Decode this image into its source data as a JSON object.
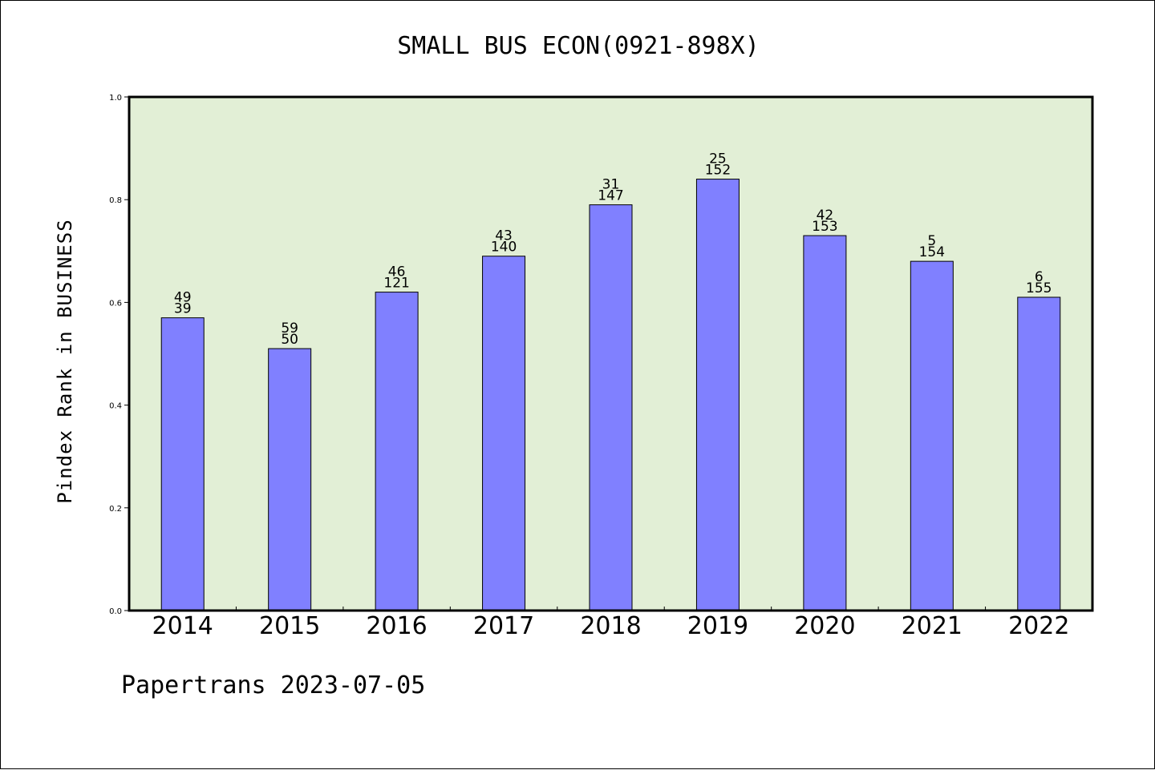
{
  "chart_data": {
    "type": "bar",
    "title": "SMALL BUS ECON(0921-898X)",
    "xlabel": "",
    "ylabel": "Pindex Rank in BUSINESS",
    "ylim": [
      0.0,
      1.0
    ],
    "yticks": [
      "0.0",
      "0.2",
      "0.4",
      "0.6",
      "0.8",
      "1.0"
    ],
    "ytick_values": [
      0.0,
      0.2,
      0.4,
      0.6,
      0.8,
      1.0
    ],
    "categories": [
      "2014",
      "2015",
      "2016",
      "2017",
      "2018",
      "2019",
      "2020",
      "2021",
      "2022"
    ],
    "values": [
      0.57,
      0.51,
      0.62,
      0.69,
      0.79,
      0.84,
      0.73,
      0.68,
      0.61
    ],
    "labels_top": [
      "49",
      "59",
      "46",
      "43",
      "31",
      "25",
      "42",
      "5",
      "6"
    ],
    "labels_bottom": [
      "39",
      "50",
      "121",
      "140",
      "147",
      "152",
      "153",
      "154",
      "155"
    ],
    "grid": false,
    "colors": {
      "bar": "#8080ff",
      "plot_background": "#e2efd6",
      "frame": "#000000"
    }
  },
  "footer": "Papertrans 2023-07-05"
}
